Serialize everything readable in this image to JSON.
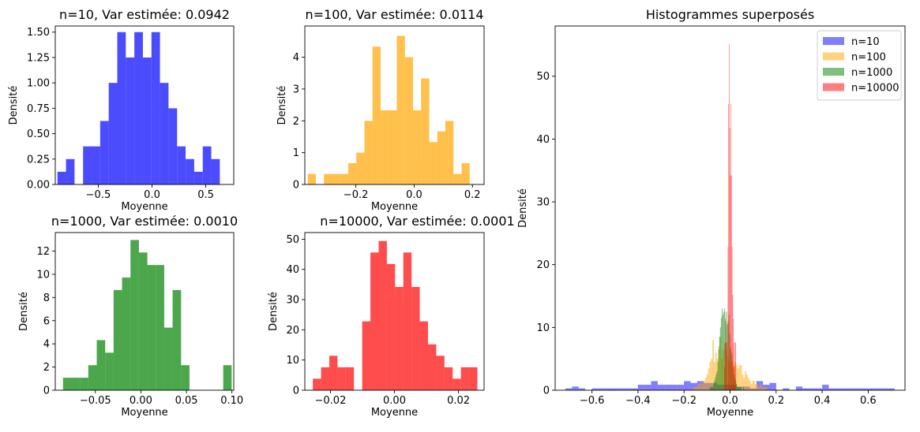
{
  "chart_data": [
    {
      "type": "bar",
      "title": "n=10, Var estimée: 0.0942",
      "xlabel": "Moyenne",
      "ylabel": "Densité",
      "xlim": [
        -0.9,
        0.76
      ],
      "ylim": [
        0,
        1.56
      ],
      "xticks": [
        -0.5,
        0.0,
        0.5
      ],
      "xtick_labels": [
        "−0.5",
        "0.0",
        "0.5"
      ],
      "yticks": [
        0,
        0.25,
        0.5,
        0.75,
        1.0,
        1.25,
        1.5
      ],
      "ytick_labels": [
        "0.00",
        "0.25",
        "0.50",
        "0.75",
        "1.00",
        "1.25",
        "1.50"
      ],
      "color": "#0000ff",
      "opacity": 0.7,
      "bins": {
        "start": -0.88,
        "width": 0.0795,
        "values": [
          0.125,
          0.25,
          0,
          0.375,
          0.375,
          0.625,
          1.0,
          1.5,
          1.25,
          1.5,
          1.25,
          1.5,
          1.0,
          0.75,
          0.375,
          0.25,
          0.125,
          0.375,
          0.25
        ]
      }
    },
    {
      "type": "bar",
      "title": "n=100, Var estimée: 0.0114",
      "xlabel": "Moyenne",
      "ylabel": "Densité",
      "xlim": [
        -0.375,
        0.24
      ],
      "ylim": [
        0,
        4.98
      ],
      "xticks": [
        -0.2,
        0.0,
        0.2
      ],
      "xtick_labels": [
        "−0.2",
        "0.0",
        "0.2"
      ],
      "yticks": [
        0,
        1,
        2,
        3,
        4
      ],
      "ytick_labels": [
        "0",
        "1",
        "2",
        "3",
        "4"
      ],
      "color": "#ffa500",
      "opacity": 0.7,
      "bins": {
        "start": -0.365,
        "width": 0.02778,
        "values": [
          0.33,
          0,
          0.33,
          0.33,
          0.33,
          0.67,
          1.0,
          2.0,
          4.33,
          2.33,
          2.33,
          4.67,
          4.0,
          2.33,
          3.33,
          1.33,
          1.67,
          2.0,
          0.33,
          0.67
        ]
      }
    },
    {
      "type": "bar",
      "title": "n=1000, Var estimée: 0.0010",
      "xlabel": "Moyenne",
      "ylabel": "Densité",
      "xlim": [
        -0.094,
        0.102
      ],
      "ylim": [
        0,
        13.6
      ],
      "xticks": [
        -0.05,
        0.0,
        0.05,
        0.1
      ],
      "xtick_labels": [
        "−0.05",
        "0.00",
        "0.05",
        "0.10"
      ],
      "yticks": [
        0,
        2,
        4,
        6,
        8,
        10,
        12
      ],
      "ytick_labels": [
        "0",
        "2",
        "4",
        "6",
        "8",
        "10",
        "12"
      ],
      "color": "#008000",
      "opacity": 0.7,
      "bins": {
        "start": -0.0855,
        "width": 0.00926,
        "values": [
          1.08,
          1.08,
          1.08,
          2.16,
          4.32,
          3.24,
          8.64,
          9.72,
          12.96,
          11.88,
          10.8,
          10.8,
          5.4,
          8.64,
          2.16,
          0,
          0,
          0,
          0,
          2.16
        ]
      }
    },
    {
      "type": "bar",
      "title": "n=10000, Var estimée: 0.0001",
      "xlabel": "Moyenne",
      "ylabel": "Densité",
      "xlim": [
        -0.028,
        0.028
      ],
      "ylim": [
        0,
        52.2
      ],
      "xticks": [
        -0.02,
        0.0,
        0.02
      ],
      "xtick_labels": [
        "−0.02",
        "0.00",
        "0.02"
      ],
      "yticks": [
        0,
        10,
        20,
        30,
        40,
        50
      ],
      "ytick_labels": [
        "0",
        "10",
        "20",
        "30",
        "40",
        "50"
      ],
      "color": "#ff0000",
      "opacity": 0.7,
      "bins": {
        "start": -0.0255,
        "width": 0.00257,
        "values": [
          3.8,
          7.6,
          11.4,
          7.6,
          7.6,
          0,
          22.8,
          45.6,
          49.4,
          41.8,
          34.2,
          45.6,
          34.2,
          22.8,
          15.2,
          11.4,
          7.6,
          3.8,
          7.6,
          7.6
        ]
      }
    },
    {
      "type": "bar",
      "title": "Histogrammes superposés",
      "xlabel": "Moyenne",
      "ylabel": "Densité",
      "xlim": [
        -0.76,
        0.76
      ],
      "ylim": [
        0,
        58
      ],
      "xticks": [
        -0.6,
        -0.4,
        -0.2,
        0.0,
        0.2,
        0.4,
        0.6
      ],
      "xtick_labels": [
        "−0.6",
        "−0.4",
        "−0.2",
        "0.0",
        "0.2",
        "0.4",
        "0.6"
      ],
      "yticks": [
        0,
        10,
        20,
        30,
        40,
        50
      ],
      "ytick_labels": [
        "0",
        "10",
        "20",
        "30",
        "40",
        "50"
      ],
      "legend": {
        "position": "upper right",
        "entries": [
          "n=10",
          "n=100",
          "n=1000",
          "n=10000"
        ]
      },
      "series": [
        {
          "name": "n=10",
          "color": "#0000ff",
          "opacity": 0.5,
          "bins": {
            "start": -0.715,
            "width": 0.0286,
            "values": [
              0.29,
              0.58,
              0.29,
              0,
              0.29,
              0.29,
              0.29,
              0.29,
              0.29,
              0.29,
              0.29,
              0.87,
              0.87,
              1.45,
              0.87,
              0.87,
              0.87,
              0.87,
              1.45,
              1.16,
              1.45,
              1.16,
              1.16,
              0.87,
              0.87,
              0.87,
              0.58,
              0.58,
              0.29,
              1.45,
              0.87,
              1.16,
              0,
              0.29,
              0,
              0.58,
              0.29,
              0.29,
              0.29,
              0.87,
              0.29,
              0.29,
              0.29,
              0.29,
              0.29,
              0.29,
              0.29,
              0.29,
              0.29,
              0.29
            ]
          }
        },
        {
          "name": "n=100",
          "color": "#ffa500",
          "opacity": 0.5,
          "bins": {
            "start": -0.16,
            "width": 0.0064,
            "values": [
              0.5,
              0.5,
              0.5,
              1.0,
              1.0,
              1.5,
              1.0,
              1.5,
              2.0,
              2.5,
              3.5,
              4.5,
              5.0,
              8.0,
              4.5,
              6.0,
              5.0,
              7.0,
              8.5,
              5.0,
              6.5,
              7.5,
              6.5,
              5.5,
              4.5,
              7.0,
              6.0,
              4.0,
              4.5,
              4.0,
              3.5,
              4.0,
              4.0,
              2.5,
              2.0,
              3.0,
              2.5,
              2.0,
              1.5,
              1.0,
              1.5,
              1.5,
              1.0,
              1.0,
              0.5,
              1.0,
              0.5,
              0.5,
              0.5,
              0.5
            ]
          }
        },
        {
          "name": "n=1000",
          "color": "#008000",
          "opacity": 0.5,
          "bins": {
            "start": -0.088,
            "width": 0.0037,
            "values": [
              0.5,
              0.5,
              0.5,
              0.5,
              1.0,
              1.5,
              2.0,
              2.5,
              3.0,
              4.5,
              6.5,
              8.5,
              10.0,
              11.5,
              13.0,
              12.0,
              12.5,
              13.0,
              11.0,
              12.5,
              10.5,
              11.0,
              12.0,
              9.0,
              6.5,
              5.5,
              4.5,
              3.5,
              2.5,
              2.0,
              1.5,
              1.0,
              0.5,
              0.5,
              0.5,
              0.5,
              0.5,
              0,
              0,
              0.5
            ]
          }
        },
        {
          "name": "n=10000",
          "color": "#ff0000",
          "opacity": 0.5,
          "bins": {
            "start": -0.0256,
            "width": 0.00256,
            "values": [
              3.8,
              7.6,
              11.4,
              7.6,
              7.6,
              0,
              22.8,
              45.6,
              55.1,
              41.8,
              34.2,
              45.6,
              34.2,
              22.8,
              15.2,
              11.4,
              7.6,
              3.8,
              7.6,
              7.6
            ]
          }
        }
      ]
    }
  ]
}
